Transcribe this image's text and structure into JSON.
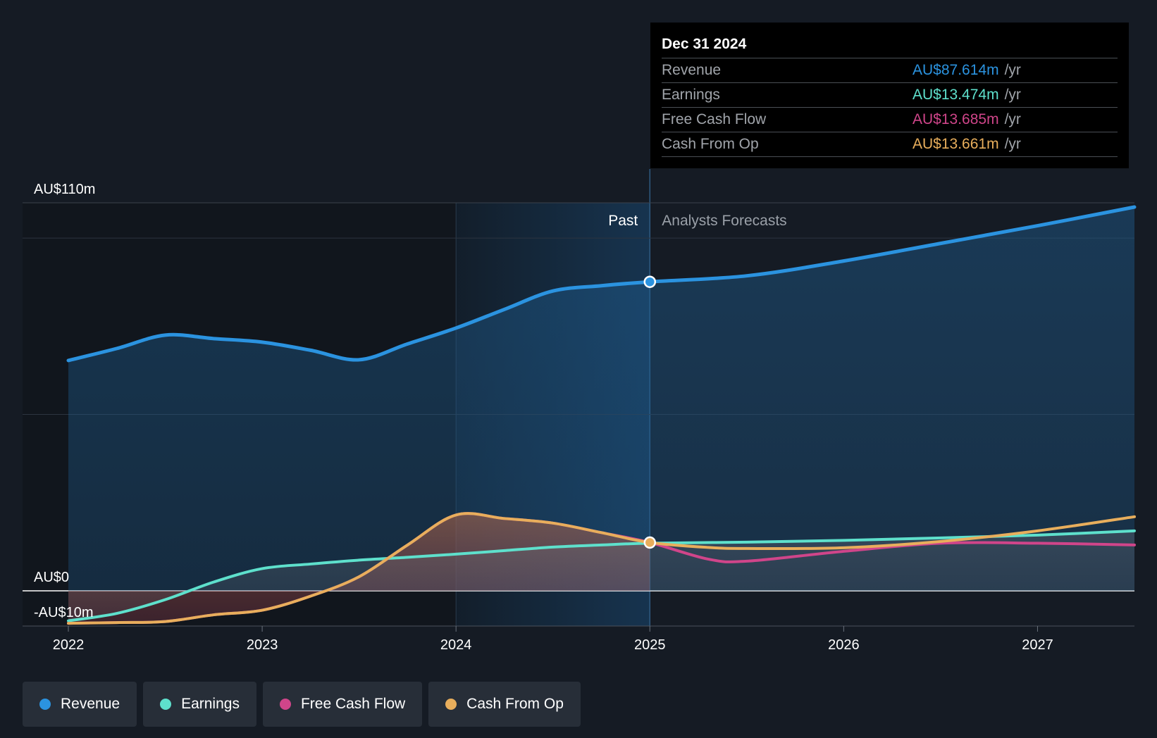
{
  "chart_data": {
    "type": "line",
    "title": "",
    "x_range": [
      2022,
      2027.5
    ],
    "y_range": [
      -10,
      110
    ],
    "y_labels": [
      {
        "value": 110,
        "text": "AU$110m"
      },
      {
        "value": 0,
        "text": "AU$0"
      },
      {
        "value": -10,
        "text": "-AU$10m"
      }
    ],
    "x_ticks": [
      {
        "value": 2022,
        "text": "2022"
      },
      {
        "value": 2023,
        "text": "2023"
      },
      {
        "value": 2024,
        "text": "2024"
      },
      {
        "value": 2025,
        "text": "2025"
      },
      {
        "value": 2026,
        "text": "2026"
      },
      {
        "value": 2027,
        "text": "2027"
      }
    ],
    "gridlines": [
      100,
      50
    ],
    "past_label": "Past",
    "forecast_label": "Analysts Forecasts",
    "divider_x": 2025,
    "highlight_start": 2024,
    "series": [
      {
        "name": "Revenue",
        "color": "#2b93e0",
        "fill": true,
        "points": [
          [
            2022,
            65.3
          ],
          [
            2022.25,
            68.7
          ],
          [
            2022.5,
            72.5
          ],
          [
            2022.75,
            71.5
          ],
          [
            2023,
            70.5
          ],
          [
            2023.25,
            68.2
          ],
          [
            2023.5,
            65.5
          ],
          [
            2023.75,
            70
          ],
          [
            2024,
            74.5
          ],
          [
            2024.25,
            79.8
          ],
          [
            2024.5,
            85
          ],
          [
            2024.75,
            86.5
          ],
          [
            2025,
            87.6
          ],
          [
            2025.5,
            89.3
          ],
          [
            2026,
            93.5
          ],
          [
            2026.5,
            98.5
          ],
          [
            2027,
            103.5
          ],
          [
            2027.5,
            108.8
          ]
        ]
      },
      {
        "name": "Earnings",
        "color": "#5ee0cc",
        "fill": false,
        "points": [
          [
            2022,
            -8.5
          ],
          [
            2022.25,
            -6.4
          ],
          [
            2022.5,
            -2.5
          ],
          [
            2022.75,
            2.5
          ],
          [
            2023,
            6.3
          ],
          [
            2023.25,
            7.6
          ],
          [
            2023.5,
            8.7
          ],
          [
            2023.75,
            9.5
          ],
          [
            2024,
            10.4
          ],
          [
            2024.25,
            11.4
          ],
          [
            2024.5,
            12.4
          ],
          [
            2024.75,
            13
          ],
          [
            2025,
            13.5
          ],
          [
            2025.5,
            13.8
          ],
          [
            2026,
            14.3
          ],
          [
            2026.5,
            15
          ],
          [
            2027,
            15.8
          ],
          [
            2027.5,
            17
          ]
        ]
      },
      {
        "name": "Free Cash Flow",
        "color": "#d0458a",
        "fill": false,
        "points": [
          [
            2022,
            -9.2
          ],
          [
            2022.25,
            -9
          ],
          [
            2022.5,
            -8.7
          ],
          [
            2022.75,
            -6.8
          ],
          [
            2023,
            -5.5
          ],
          [
            2023.25,
            -1.5
          ],
          [
            2023.5,
            4
          ],
          [
            2023.75,
            13
          ],
          [
            2024,
            21.5
          ],
          [
            2024.25,
            20.5
          ],
          [
            2024.5,
            19.2
          ],
          [
            2024.75,
            16.5
          ],
          [
            2025,
            13.7
          ],
          [
            2025.3,
            9
          ],
          [
            2025.5,
            8.4
          ],
          [
            2026,
            11.2
          ],
          [
            2026.5,
            13.5
          ],
          [
            2027,
            13.5
          ],
          [
            2027.5,
            13
          ]
        ]
      },
      {
        "name": "Cash From Op",
        "color": "#e8ae5c",
        "fill": false,
        "points": [
          [
            2022,
            -9.2
          ],
          [
            2022.25,
            -9
          ],
          [
            2022.5,
            -8.7
          ],
          [
            2022.75,
            -6.8
          ],
          [
            2023,
            -5.5
          ],
          [
            2023.25,
            -1.5
          ],
          [
            2023.5,
            4
          ],
          [
            2023.75,
            13
          ],
          [
            2024,
            21.5
          ],
          [
            2024.25,
            20.5
          ],
          [
            2024.5,
            19.2
          ],
          [
            2024.75,
            16.5
          ],
          [
            2025,
            13.7
          ],
          [
            2025.3,
            12.3
          ],
          [
            2025.5,
            12
          ],
          [
            2026,
            12.2
          ],
          [
            2026.5,
            14
          ],
          [
            2027,
            17
          ],
          [
            2027.5,
            21
          ]
        ]
      }
    ]
  },
  "tooltip": {
    "date": "Dec 31 2024",
    "rows": [
      {
        "name": "Revenue",
        "value": "AU$87.614m",
        "unit": "/yr",
        "color": "#2b93e0"
      },
      {
        "name": "Earnings",
        "value": "AU$13.474m",
        "unit": "/yr",
        "color": "#5ee0cc"
      },
      {
        "name": "Free Cash Flow",
        "value": "AU$13.685m",
        "unit": "/yr",
        "color": "#d0458a"
      },
      {
        "name": "Cash From Op",
        "value": "AU$13.661m",
        "unit": "/yr",
        "color": "#e8ae5c"
      }
    ]
  },
  "legend": [
    {
      "label": "Revenue",
      "color": "#2b93e0"
    },
    {
      "label": "Earnings",
      "color": "#5ee0cc"
    },
    {
      "label": "Free Cash Flow",
      "color": "#d0458a"
    },
    {
      "label": "Cash From Op",
      "color": "#e8ae5c"
    }
  ]
}
